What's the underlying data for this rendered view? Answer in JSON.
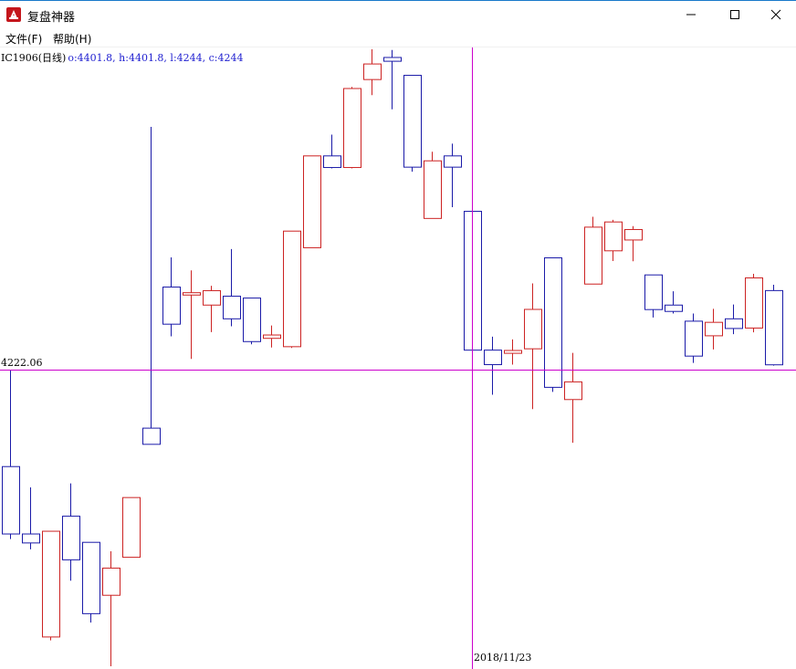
{
  "window": {
    "title": "复盘神器",
    "buttons": {
      "minimize": "—",
      "maximize": "□",
      "close": "✕"
    },
    "accent_color": "#1979ca"
  },
  "menu": [
    {
      "label": "文件(F)"
    },
    {
      "label": "帮助(H)"
    }
  ],
  "info": {
    "symbol": "IC1906(日线)",
    "ohlc": "o:4401.8, h:4401.8, l:4244, c:4244"
  },
  "crosshair": {
    "price_label": "4222.06",
    "price": 4222.06,
    "date_label": "2018/11/23",
    "candle_index": 23,
    "color": "#cc00cc"
  },
  "chart_data": {
    "type": "candlestick",
    "up_color": "#cc2222",
    "down_color": "#1a1aa8",
    "candles": [
      {
        "o": 4111.6,
        "h": 4221.8,
        "l": 4029.2,
        "c": 4035.0
      },
      {
        "o": 4035.0,
        "h": 4088.0,
        "l": 4017.6,
        "c": 4024.8
      },
      {
        "o": 3917.9,
        "h": 4038.1,
        "l": 3914.1,
        "c": 4038.1
      },
      {
        "o": 4055.2,
        "h": 4092.5,
        "l": 3981.9,
        "c": 4005.6
      },
      {
        "o": 4025.5,
        "h": 4025.5,
        "l": 3934.3,
        "c": 3944.4
      },
      {
        "o": 3965.3,
        "h": 4015.3,
        "l": 3884.6,
        "c": 3996.2
      },
      {
        "o": 4008.5,
        "h": 4076.4,
        "l": 4008.5,
        "c": 4076.4
      },
      {
        "o": 4155.3,
        "h": 4497.8,
        "l": 4136.9,
        "c": 4136.9
      },
      {
        "o": 4315.7,
        "h": 4349.4,
        "l": 4259.7,
        "c": 4273.5
      },
      {
        "o": 4306.6,
        "h": 4334.7,
        "l": 4234.0,
        "c": 4309.3
      },
      {
        "o": 4295.2,
        "h": 4317.1,
        "l": 4264.5,
        "c": 4311.6
      },
      {
        "o": 4305.3,
        "h": 4358.9,
        "l": 4271.1,
        "c": 4279.6
      },
      {
        "o": 4303.2,
        "h": 4303.2,
        "l": 4250.6,
        "c": 4253.7
      },
      {
        "o": 4257.4,
        "h": 4272.0,
        "l": 4247.0,
        "c": 4261.2
      },
      {
        "o": 4247.9,
        "h": 4379.3,
        "l": 4246.5,
        "c": 4379.3
      },
      {
        "o": 4360.4,
        "h": 4464.8,
        "l": 4360.4,
        "c": 4464.8
      },
      {
        "o": 4464.8,
        "h": 4489.0,
        "l": 4450.6,
        "c": 4451.6
      },
      {
        "o": 4451.6,
        "h": 4543.2,
        "l": 4450.6,
        "c": 4541.4
      },
      {
        "o": 4551.6,
        "h": 4586.0,
        "l": 4533.8,
        "c": 4569.3
      },
      {
        "o": 4576.7,
        "h": 4585.2,
        "l": 4517.8,
        "c": 4572.4
      },
      {
        "o": 4556.4,
        "h": 4556.4,
        "l": 4446.8,
        "c": 4452.0
      },
      {
        "o": 4393.7,
        "h": 4469.5,
        "l": 4393.7,
        "c": 4459.2
      },
      {
        "o": 4464.8,
        "h": 4478.8,
        "l": 4406.5,
        "c": 4452.0
      },
      {
        "o": 4401.8,
        "h": 4401.8,
        "l": 4244.0,
        "c": 4244.0
      },
      {
        "o": 4244.0,
        "h": 4259.3,
        "l": 4193.3,
        "c": 4227.5
      },
      {
        "o": 4240.4,
        "h": 4256.2,
        "l": 4227.5,
        "c": 4243.6
      },
      {
        "o": 4245.5,
        "h": 4319.9,
        "l": 4177.0,
        "c": 4290.3
      },
      {
        "o": 4348.9,
        "h": 4348.9,
        "l": 4196.5,
        "c": 4201.7
      },
      {
        "o": 4187.8,
        "h": 4240.9,
        "l": 4138.7,
        "c": 4207.9
      },
      {
        "o": 4319.1,
        "h": 4395.6,
        "l": 4319.1,
        "c": 4383.8
      },
      {
        "o": 4356.9,
        "h": 4392.1,
        "l": 4345.3,
        "c": 4389.7
      },
      {
        "o": 4369.2,
        "h": 4385.0,
        "l": 4345.0,
        "c": 4381.1
      },
      {
        "o": 4329.5,
        "h": 4329.5,
        "l": 4281.1,
        "c": 4290.1
      },
      {
        "o": 4295.2,
        "h": 4310.9,
        "l": 4285.6,
        "c": 4288.0
      },
      {
        "o": 4276.9,
        "h": 4285.6,
        "l": 4229.4,
        "c": 4237.2
      },
      {
        "o": 4260.3,
        "h": 4290.9,
        "l": 4244.8,
        "c": 4275.6
      },
      {
        "o": 4279.6,
        "h": 4295.9,
        "l": 4262.1,
        "c": 4268.6
      },
      {
        "o": 4269.1,
        "h": 4330.8,
        "l": 4264.2,
        "c": 4326.1
      },
      {
        "o": 4311.7,
        "h": 4318.3,
        "l": 4226.3,
        "c": 4227.3
      }
    ]
  }
}
